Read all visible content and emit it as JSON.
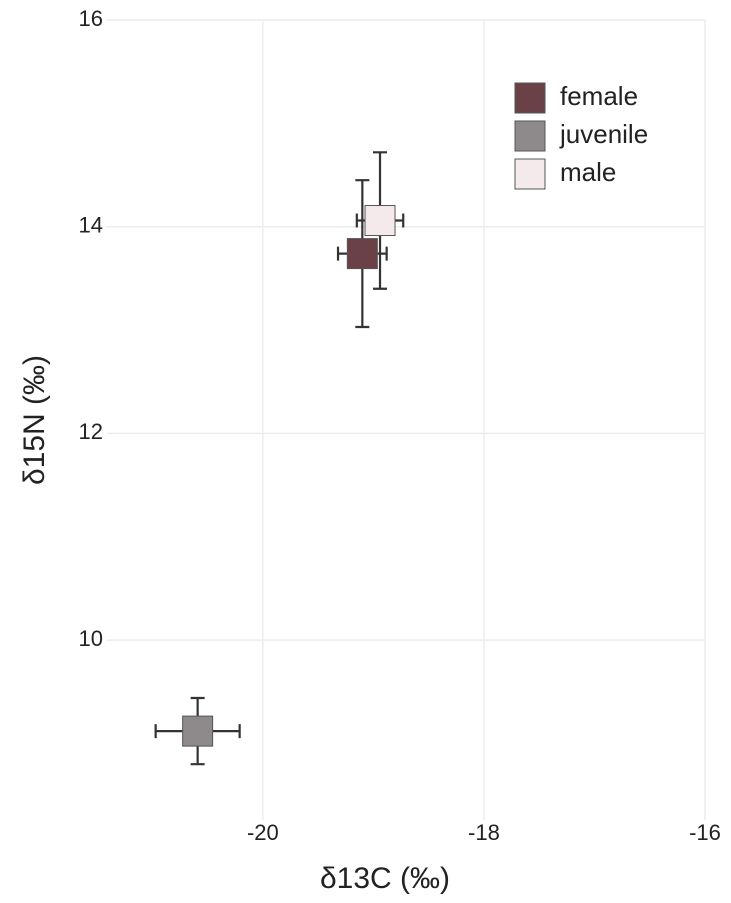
{
  "chart_data": {
    "type": "scatter",
    "x_label": "δ13C (‰)",
    "y_label": "δ15N (‰)",
    "xlim": [
      -21.41,
      -16
    ],
    "xticks": [
      -20,
      -18,
      -16
    ],
    "ylim": [
      8.26,
      16
    ],
    "yticks": [
      10,
      12,
      14,
      16
    ],
    "grid": true,
    "legend": "top-right",
    "series": [
      {
        "name": "female",
        "color": "#6b4148",
        "x": [
          -19.1
        ],
        "y": [
          13.74
        ],
        "xerr": [
          0.22
        ],
        "yerr": [
          0.71
        ]
      },
      {
        "name": "juvenile",
        "color": "#8e8a8c",
        "x": [
          -20.59
        ],
        "y": [
          9.12
        ],
        "xerr": [
          0.38
        ],
        "yerr": [
          0.32
        ]
      },
      {
        "name": "male",
        "color": "#f4eaec",
        "x": [
          -18.94
        ],
        "y": [
          14.06
        ],
        "xerr": [
          0.21
        ],
        "yerr": [
          0.66
        ]
      }
    ]
  }
}
